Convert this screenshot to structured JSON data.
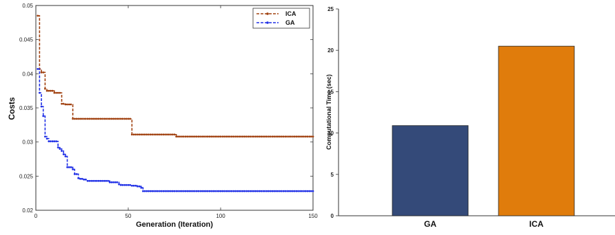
{
  "chart_data": [
    {
      "type": "line",
      "xlabel": "Generation (Iteration)",
      "ylabel": "Costs",
      "xlim": [
        0,
        150
      ],
      "ylim": [
        0.02,
        0.05
      ],
      "xticks": [
        "0",
        "50",
        "100",
        "150"
      ],
      "yticks": [
        "0.02",
        "0.025",
        "0.03",
        "0.035",
        "0.04",
        "0.045",
        "0.05"
      ],
      "grid": false,
      "legend_position": "top-right",
      "series": [
        {
          "name": "ICA",
          "color": "#a0400f",
          "x": [
            1,
            2,
            3,
            4,
            5,
            6,
            10,
            13,
            14,
            16,
            19,
            20,
            25,
            30,
            40,
            45,
            50,
            51,
            52,
            55,
            60,
            70,
            75,
            76,
            80,
            90,
            100,
            110,
            120,
            130,
            140,
            150
          ],
          "y": [
            0.0485,
            0.0407,
            0.0402,
            0.0402,
            0.0378,
            0.0375,
            0.0372,
            0.0372,
            0.0356,
            0.0355,
            0.0355,
            0.0334,
            0.0334,
            0.0334,
            0.0334,
            0.0334,
            0.0334,
            0.0334,
            0.0311,
            0.0311,
            0.0311,
            0.0311,
            0.0311,
            0.0308,
            0.0308,
            0.0308,
            0.0308,
            0.0308,
            0.0308,
            0.0308,
            0.0308,
            0.0308
          ]
        },
        {
          "name": "GA",
          "color": "#1f2fe6",
          "x": [
            1,
            2,
            3,
            4,
            5,
            6,
            7,
            8,
            10,
            12,
            13,
            14,
            15,
            16,
            17,
            18,
            20,
            21,
            22,
            23,
            24,
            26,
            28,
            30,
            35,
            40,
            45,
            46,
            50,
            52,
            55,
            57,
            58,
            60,
            70,
            80,
            90,
            100,
            110,
            120,
            130,
            140,
            150
          ],
          "y": [
            0.0407,
            0.0372,
            0.0352,
            0.0338,
            0.0308,
            0.0305,
            0.0301,
            0.0301,
            0.0301,
            0.0292,
            0.029,
            0.0287,
            0.0282,
            0.0279,
            0.0263,
            0.0263,
            0.026,
            0.0253,
            0.0253,
            0.0247,
            0.0246,
            0.0245,
            0.0243,
            0.0243,
            0.0243,
            0.0241,
            0.0238,
            0.0237,
            0.0237,
            0.0236,
            0.0235,
            0.0233,
            0.0228,
            0.0228,
            0.0228,
            0.0228,
            0.0228,
            0.0228,
            0.0228,
            0.0228,
            0.0228,
            0.0228,
            0.0228
          ]
        }
      ]
    },
    {
      "type": "bar",
      "ylabel": "Computational Time (sec)",
      "xlabel": "",
      "ylim": [
        0,
        25
      ],
      "yticks": [
        "0",
        "5",
        "10",
        "15",
        "20",
        "25"
      ],
      "grid": false,
      "categories": [
        "GA",
        "ICA"
      ],
      "values": [
        10.9,
        20.5
      ],
      "colors": [
        "#344a79",
        "#e07c0c"
      ]
    }
  ]
}
